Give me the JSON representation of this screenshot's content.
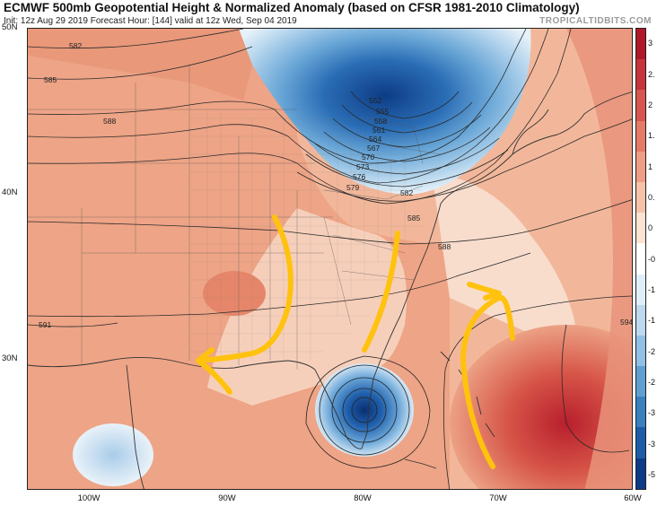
{
  "header": {
    "title": "ECMWF 500mb Geopotential Height & Normalized Anomaly (based on CFSR 1981-2010 Climatology)",
    "subtitle": "Init: 12z Aug 29 2019   Forecast Hour: [144]   valid at 12z Wed, Sep 04 2019",
    "brand": "TROPICALTIDBITS.COM"
  },
  "axes": {
    "lat_labels": [
      "50N",
      "40N",
      "30N"
    ],
    "lon_labels": [
      "100W",
      "90W",
      "80W",
      "70W",
      "60W"
    ]
  },
  "contours": {
    "labels": [
      "582",
      "585",
      "588",
      "552",
      "555",
      "558",
      "561",
      "564",
      "567",
      "570",
      "573",
      "576",
      "579",
      "582",
      "585",
      "588",
      "591",
      "594"
    ]
  },
  "colorbar": {
    "tick_labels": [
      "3",
      "2.",
      "2",
      "1.",
      "1",
      "0.",
      "0",
      "-0",
      "-1",
      "-1",
      "-2",
      "-2",
      "-3",
      "-3",
      "-5"
    ],
    "colors": [
      "#b0182a",
      "#c7333a",
      "#d8564f",
      "#e57a66",
      "#ef9d84",
      "#f6c2a8",
      "#fbe2d3",
      "#ffffff",
      "#dfeef8",
      "#bcd9ef",
      "#90c0e3",
      "#5f9fd1",
      "#3a7fbe",
      "#1d5da8",
      "#0d3c86"
    ]
  },
  "annotation_color": "#ffc20e"
}
